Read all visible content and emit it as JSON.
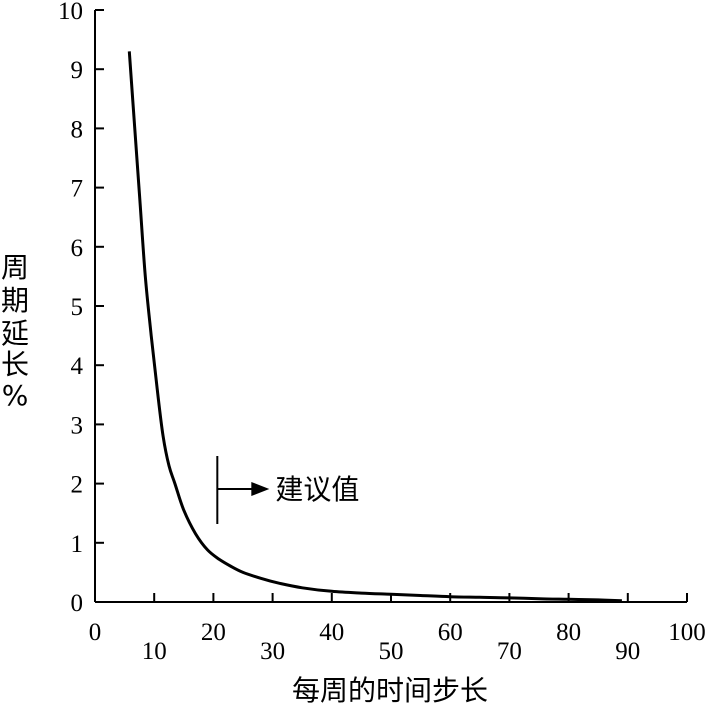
{
  "chart_data": {
    "type": "line",
    "title": "",
    "xlabel": "每周的时间步长",
    "ylabel": "周期延长%",
    "ylabel_chars": [
      "周",
      "期",
      "延",
      "长",
      "%"
    ],
    "xlim": [
      0,
      100
    ],
    "ylim": [
      0,
      10
    ],
    "x_ticks": [
      0,
      10,
      20,
      30,
      40,
      50,
      60,
      70,
      80,
      90,
      100
    ],
    "y_ticks": [
      0,
      1,
      2,
      3,
      4,
      5,
      6,
      7,
      8,
      9,
      10
    ],
    "grid": false,
    "series": [
      {
        "x": [
          5.8,
          6.5,
          7.5,
          8.5,
          9.5,
          10.5,
          11.5,
          12.5,
          13.5,
          15,
          17,
          19,
          21,
          23,
          25,
          28,
          31,
          35,
          40,
          45,
          50,
          55,
          60,
          65,
          70,
          75,
          80,
          85,
          89
        ],
        "y": [
          9.3,
          8.3,
          6.9,
          5.5,
          4.5,
          3.6,
          2.8,
          2.3,
          2.0,
          1.55,
          1.15,
          0.88,
          0.72,
          0.6,
          0.5,
          0.4,
          0.32,
          0.24,
          0.18,
          0.15,
          0.13,
          0.11,
          0.09,
          0.08,
          0.07,
          0.055,
          0.045,
          0.035,
          0.02
        ]
      }
    ],
    "annotation": {
      "label": "建议值",
      "x": 21
    }
  }
}
